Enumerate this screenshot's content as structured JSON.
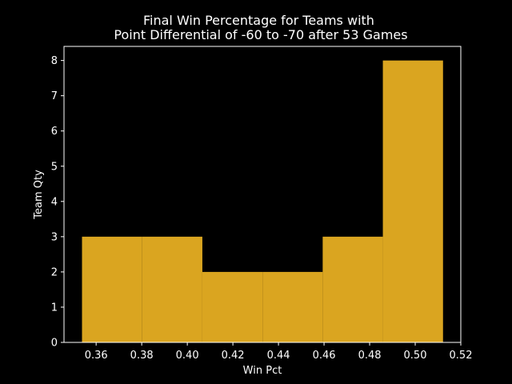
{
  "chart_data": {
    "type": "bar",
    "title": "Final Win Percentage for Teams with\nPoint Differential of -60 to -70 after 53 Games",
    "xlabel": "Win Pct",
    "ylabel": "Team Qty",
    "bins": [
      {
        "start": 0.3538,
        "end": 0.3802,
        "count": 3
      },
      {
        "start": 0.3802,
        "end": 0.4066,
        "count": 3
      },
      {
        "start": 0.4066,
        "end": 0.433,
        "count": 2
      },
      {
        "start": 0.433,
        "end": 0.4594,
        "count": 2
      },
      {
        "start": 0.4594,
        "end": 0.4858,
        "count": 3
      },
      {
        "start": 0.4858,
        "end": 0.5122,
        "count": 8
      }
    ],
    "xlim": [
      0.3459,
      0.52
    ],
    "ylim": [
      0,
      8.4
    ],
    "xticks": [
      "0.36",
      "0.38",
      "0.40",
      "0.42",
      "0.44",
      "0.46",
      "0.48",
      "0.50",
      "0.52"
    ],
    "yticks": [
      "0",
      "1",
      "2",
      "3",
      "4",
      "5",
      "6",
      "7",
      "8"
    ],
    "grid": false,
    "colors": {
      "bar": "#daa520",
      "background": "#000000",
      "foreground": "#ffffff"
    }
  }
}
